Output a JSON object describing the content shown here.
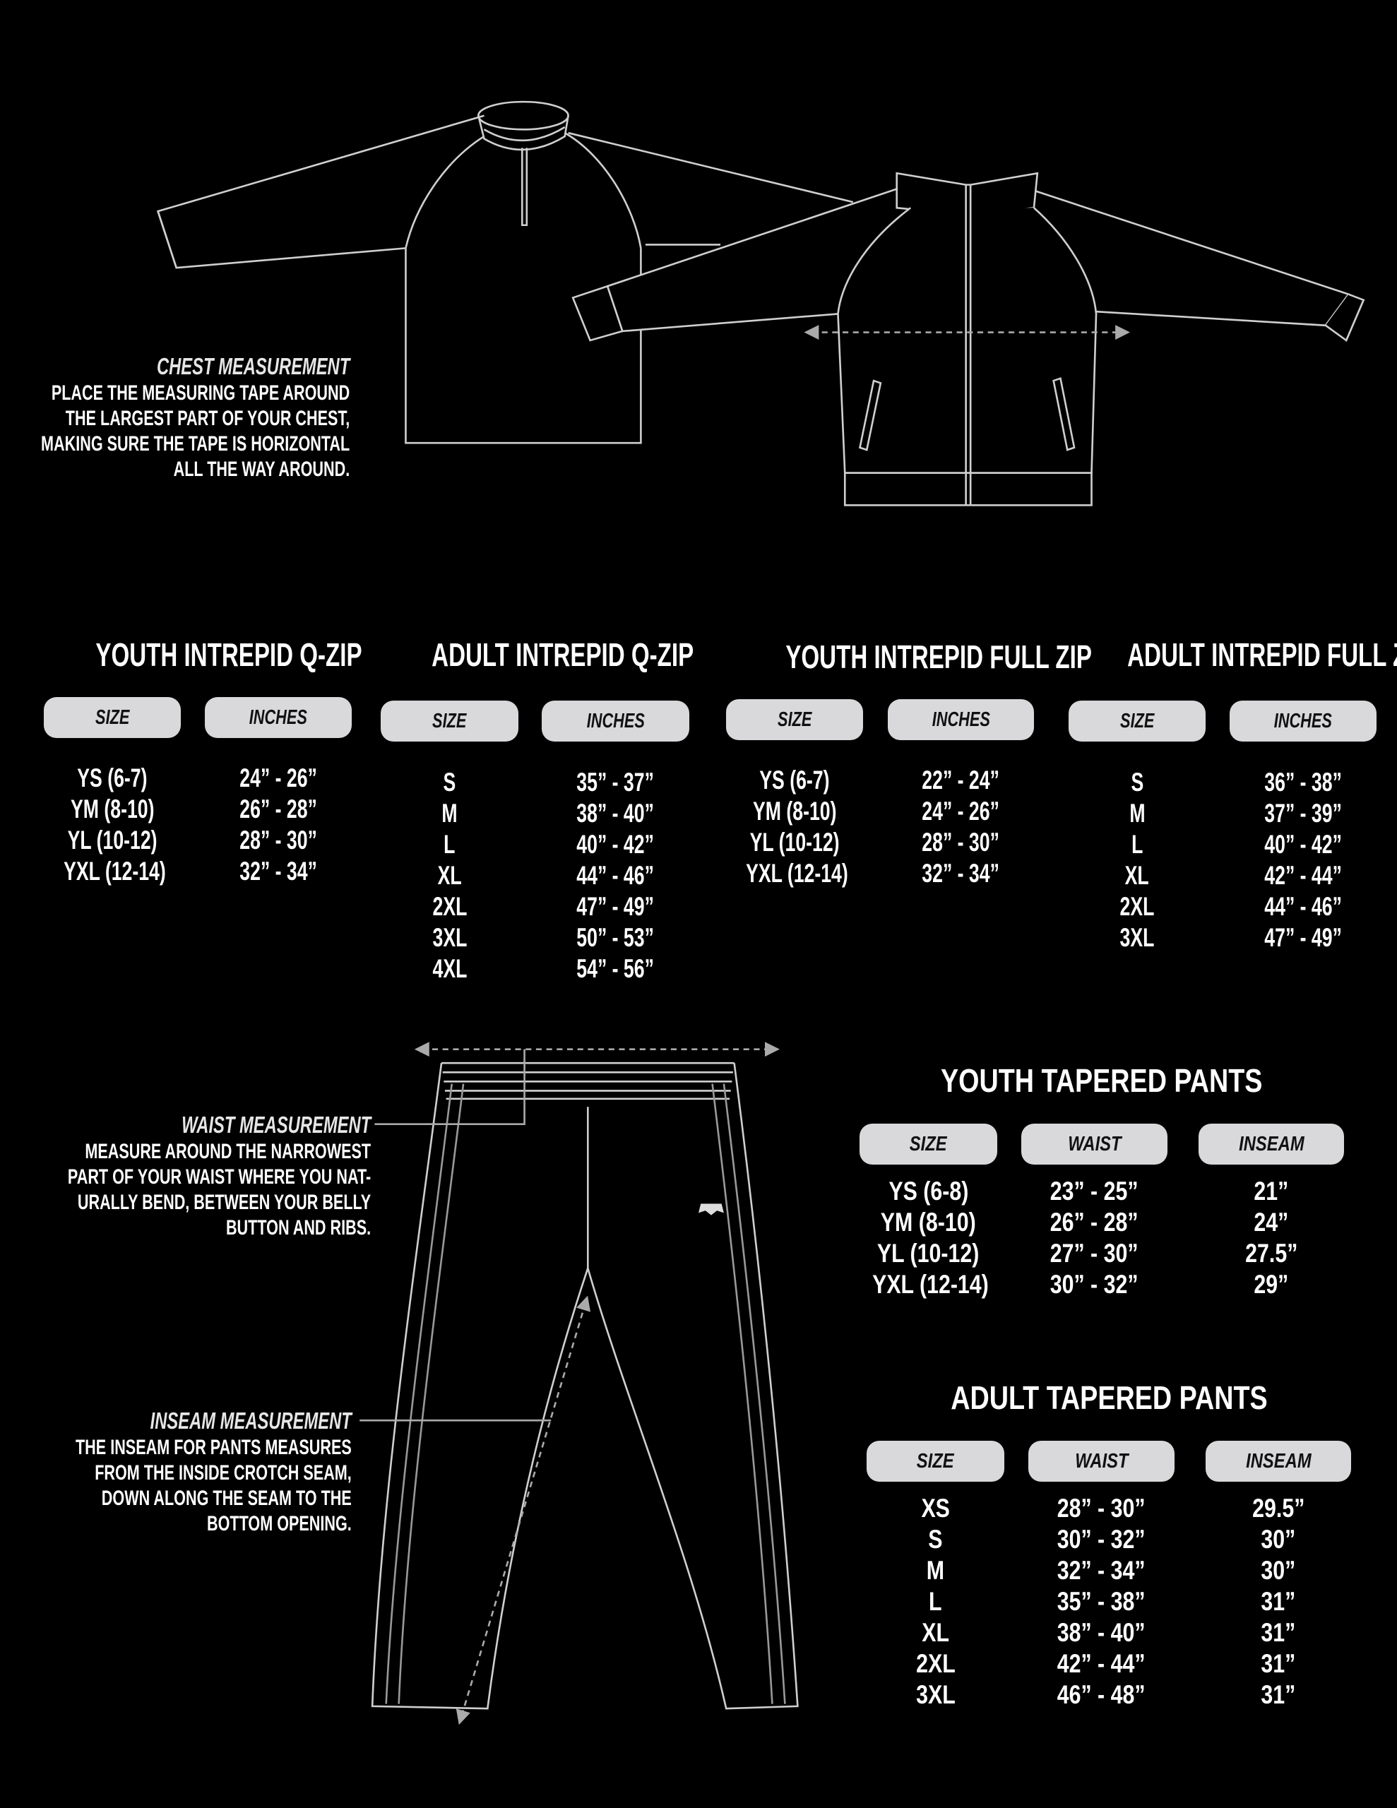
{
  "colors": {
    "background": "#000000",
    "text": "#ffffff",
    "header_pill": "#d9d9dc",
    "line_art": "#cfcfcf"
  },
  "chest_note": {
    "title": "CHEST MEASUREMENT",
    "lines": [
      "PLACE THE MEASURING TAPE AROUND",
      "THE LARGEST PART OF YOUR CHEST,",
      "MAKING SURE THE TAPE IS HORIZONTAL",
      "ALL THE WAY AROUND."
    ]
  },
  "waist_note": {
    "title": "WAIST MEASUREMENT",
    "lines": [
      "MEASURE AROUND THE NARROWEST",
      "PART OF YOUR WAIST WHERE YOU NAT-",
      "URALLY BEND, BETWEEN YOUR BELLY",
      "BUTTON AND RIBS."
    ]
  },
  "inseam_note": {
    "title": "INSEAM MEASUREMENT",
    "lines": [
      "THE INSEAM FOR PANTS MEASURES",
      "FROM THE INSIDE CROTCH SEAM,",
      "DOWN ALONG THE SEAM TO THE",
      "BOTTOM OPENING."
    ]
  },
  "tables": [
    {
      "title": "YOUTH INTREPID Q-ZIP",
      "headers": [
        "SIZE",
        "INCHES"
      ],
      "rows": [
        [
          "YS (6-7)",
          "24” - 26”"
        ],
        [
          "YM (8-10)",
          "26” - 28”"
        ],
        [
          "YL (10-12)",
          "28” - 30”"
        ],
        [
          "YXL (12-14)",
          "32” - 34”"
        ]
      ]
    },
    {
      "title": "ADULT INTREPID Q-ZIP",
      "headers": [
        "SIZE",
        "INCHES"
      ],
      "rows": [
        [
          "S",
          "35” - 37”"
        ],
        [
          "M",
          "38” - 40”"
        ],
        [
          "L",
          "40” - 42”"
        ],
        [
          "XL",
          "44” - 46”"
        ],
        [
          "2XL",
          "47” - 49”"
        ],
        [
          "3XL",
          "50” - 53”"
        ],
        [
          "4XL",
          "54” - 56”"
        ]
      ]
    },
    {
      "title": "YOUTH INTREPID FULL ZIP",
      "headers": [
        "SIZE",
        "INCHES"
      ],
      "rows": [
        [
          "YS (6-7)",
          "22” - 24”"
        ],
        [
          "YM (8-10)",
          "24” - 26”"
        ],
        [
          "YL (10-12)",
          "28” - 30”"
        ],
        [
          "YXL (12-14)",
          "32” - 34”"
        ]
      ]
    },
    {
      "title": "ADULT INTREPID FULL ZIP",
      "headers": [
        "SIZE",
        "INCHES"
      ],
      "rows": [
        [
          "S",
          "36” - 38”"
        ],
        [
          "M",
          "37” - 39”"
        ],
        [
          "L",
          "40” - 42”"
        ],
        [
          "XL",
          "42” - 44”"
        ],
        [
          "2XL",
          "44” - 46”"
        ],
        [
          "3XL",
          "47” - 49”"
        ]
      ]
    },
    {
      "title": "YOUTH TAPERED PANTS",
      "headers": [
        "SIZE",
        "WAIST",
        "INSEAM"
      ],
      "rows": [
        [
          "YS (6-8)",
          "23” - 25”",
          "21”"
        ],
        [
          "YM (8-10)",
          "26” - 28”",
          "24”"
        ],
        [
          "YL (10-12)",
          "27” - 30”",
          "27.5”"
        ],
        [
          "YXL (12-14)",
          "30” - 32”",
          "29”"
        ]
      ]
    },
    {
      "title": "ADULT TAPERED PANTS",
      "headers": [
        "SIZE",
        "WAIST",
        "INSEAM"
      ],
      "rows": [
        [
          "XS",
          "28” - 30”",
          "29.5”"
        ],
        [
          "S",
          "30” - 32”",
          "30”"
        ],
        [
          "M",
          "32” - 34”",
          "30”"
        ],
        [
          "L",
          "35” - 38”",
          "31”"
        ],
        [
          "XL",
          "38” - 40”",
          "31”"
        ],
        [
          "2XL",
          "42” - 44”",
          "31”"
        ],
        [
          "3XL",
          "46” - 48”",
          "31”"
        ]
      ]
    }
  ]
}
